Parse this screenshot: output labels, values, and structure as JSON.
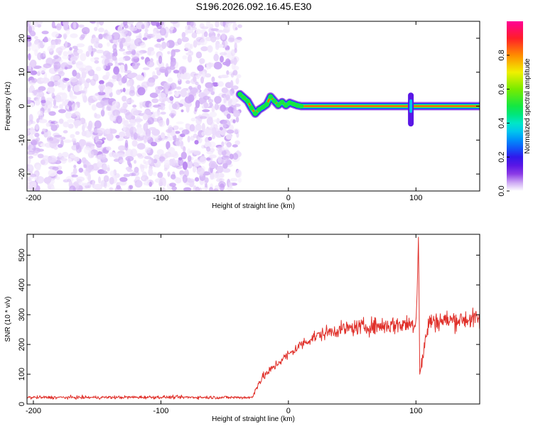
{
  "title": "S196.2026.092.16.45.E30",
  "chart_data": [
    {
      "type": "heatmap",
      "title": "S196.2026.092.16.45.E30",
      "xlabel": "Height of straight line (km)",
      "ylabel": "Frequency (Hz)",
      "xlim": [
        -205,
        150
      ],
      "ylim": [
        -25,
        25
      ],
      "xticks": [
        -200,
        -100,
        0,
        100
      ],
      "yticks": [
        -20,
        -10,
        0,
        10,
        20
      ],
      "colorbar": {
        "label": "Normalized spectral amplitude",
        "range": [
          0,
          1
        ],
        "ticks": [
          0.0,
          0.2,
          0.4,
          0.6,
          0.8
        ]
      },
      "noise_region_end_km": -38,
      "ridge_trace": {
        "x": [
          -38,
          -35,
          -32,
          -29,
          -26,
          -23,
          -20,
          -17,
          -14,
          -11,
          -8,
          -5,
          -2,
          1,
          4,
          7,
          10,
          15,
          20,
          30,
          50,
          80,
          94,
          96,
          100,
          120,
          150
        ],
        "y": [
          3.5,
          2.5,
          1.5,
          -0.5,
          -2.2,
          -1.0,
          -0.3,
          0.5,
          2.8,
          1.5,
          0.3,
          1.2,
          0.2,
          1.0,
          0.6,
          0.2,
          0.0,
          0.0,
          0.0,
          0.0,
          0.0,
          0.0,
          0.0,
          0.0,
          0.0,
          0.0,
          0.0
        ]
      },
      "vertical_feature_km": 96
    },
    {
      "type": "line",
      "title": "",
      "xlabel": "Height of straight line (km)",
      "ylabel": "SNR (10 * v/v)",
      "xlim": [
        -205,
        150
      ],
      "ylim": [
        0,
        570
      ],
      "xticks": [
        -200,
        -100,
        0,
        100
      ],
      "yticks": [
        0,
        100,
        200,
        300,
        400,
        500
      ],
      "color": "#e0302a",
      "series": [
        {
          "name": "SNR",
          "x": [
            -205,
            -150,
            -100,
            -50,
            -28,
            -25,
            -20,
            -15,
            -10,
            -5,
            0,
            10,
            20,
            30,
            40,
            50,
            60,
            70,
            80,
            90,
            100,
            101,
            102,
            103,
            110,
            120,
            130,
            140,
            150
          ],
          "y": [
            22,
            22,
            23,
            22,
            22,
            60,
            90,
            110,
            130,
            150,
            165,
            200,
            225,
            240,
            250,
            255,
            260,
            262,
            265,
            268,
            270,
            380,
            570,
            100,
            275,
            280,
            282,
            285,
            285
          ]
        }
      ]
    }
  ]
}
